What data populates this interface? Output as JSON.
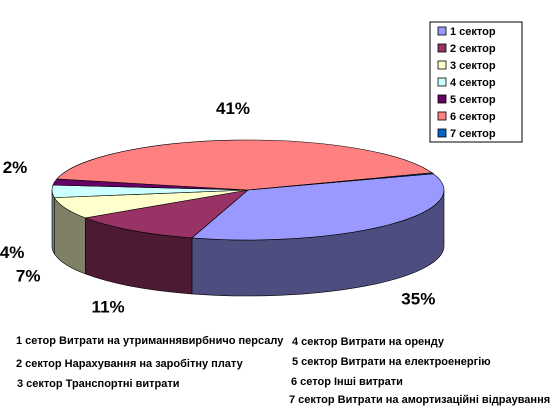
{
  "chart_data": {
    "type": "pie",
    "title": "",
    "legend_position": "top-right",
    "categories": [
      "1 сектор",
      "2 сектор",
      "3 сектор",
      "4 сектор",
      "5 сектор",
      "6 сектор",
      "7 сектор"
    ],
    "values": [
      35,
      11,
      7,
      4,
      2,
      41,
      0.3
    ],
    "data_labels": [
      "35%",
      "11%",
      "7%",
      "4%",
      "2%",
      "41%",
      ""
    ],
    "colors": [
      "#9999ff",
      "#993366",
      "#ffffcc",
      "#ccffff",
      "#660066",
      "#ff8080",
      "#0066cc"
    ]
  },
  "notes": [
    "1 сетор Витрати на утриманнявирбничо персалу",
    "2 сектор Нарахування на заробітну плату",
    "3 сектор Транспортні витрати",
    "4 сектор Витрати на оренду",
    "5 сектор Витрати на електроенергію",
    "6 сетор Інші витрати",
    "7 сектор Витрати на амортизаційні відраування"
  ]
}
